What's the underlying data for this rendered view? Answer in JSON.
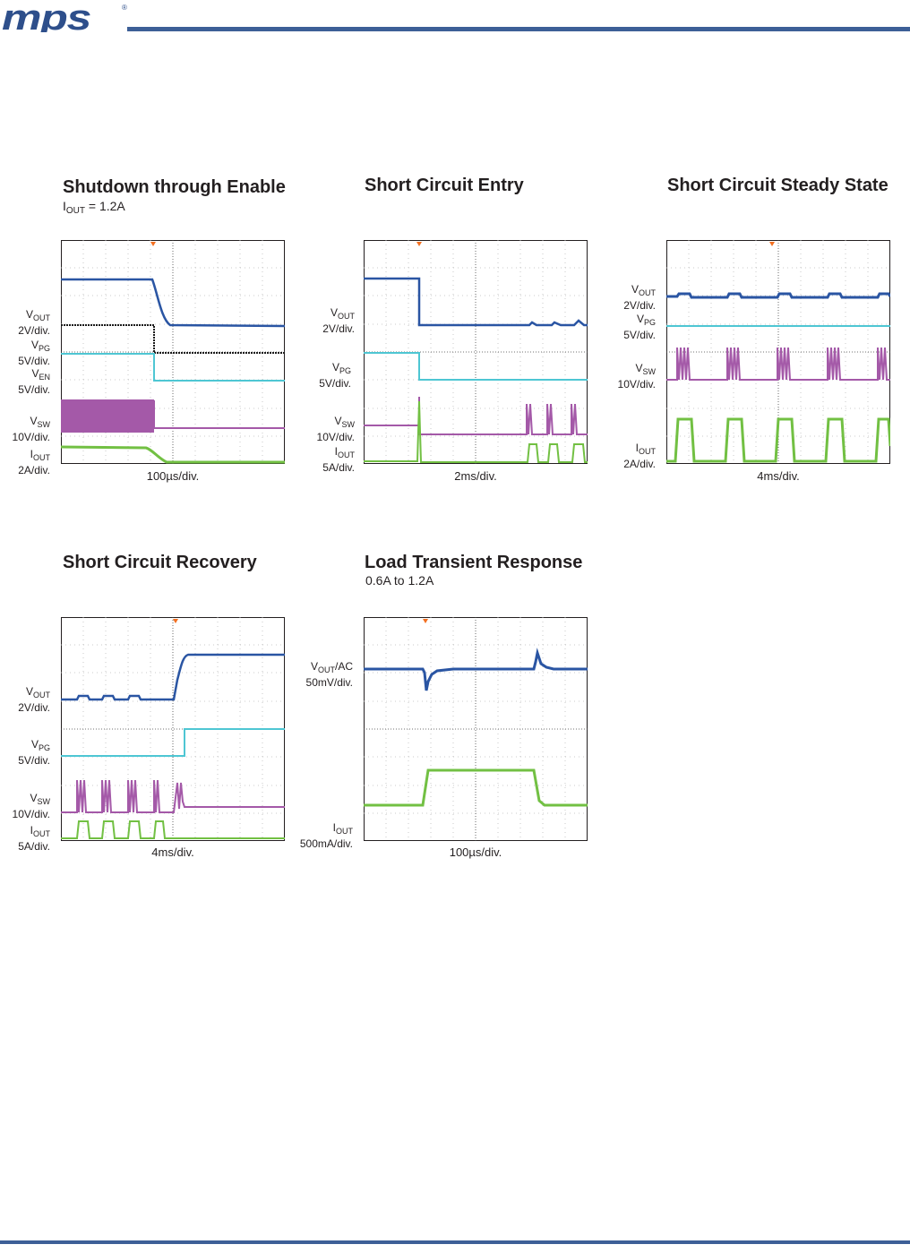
{
  "header": {
    "logo_text": "mps",
    "logo_mark": "®",
    "logo_color": "#2e4f8b"
  },
  "colors": {
    "ch1": "#2a55a3",
    "ch2": "#4ec6d3",
    "ch3": "#a459a8",
    "ch4": "#72c043",
    "trigger": "#f37021",
    "enable": "#1a1a1a"
  },
  "plots": [
    {
      "title": "Shutdown through Enable",
      "subtitle": {
        "main": "I",
        "sub": "OUT",
        "rest": " = 1.2A"
      },
      "time_div": "100µs/div.",
      "labels": [
        {
          "main": "V",
          "sub": "OUT",
          "unit": "2V/div."
        },
        {
          "main": "V",
          "sub": "PG",
          "unit": "5V/div."
        },
        {
          "main": "V",
          "sub": "EN",
          "unit": "5V/div."
        },
        {
          "main": "V",
          "sub": "SW",
          "unit": "10V/div."
        },
        {
          "main": "I",
          "sub": "OUT",
          "unit": "2A/div."
        }
      ]
    },
    {
      "title": "Short Circuit Entry",
      "time_div": "2ms/div.",
      "labels": [
        {
          "main": "V",
          "sub": "OUT",
          "unit": "2V/div."
        },
        {
          "main": "V",
          "sub": "PG",
          "unit": "5V/div."
        },
        {
          "main": "V",
          "sub": "SW",
          "unit": "10V/div."
        },
        {
          "main": "I",
          "sub": "OUT",
          "unit": "5A/div."
        }
      ]
    },
    {
      "title": "Short Circuit Steady State",
      "time_div": "4ms/div.",
      "labels": [
        {
          "main": "V",
          "sub": "OUT",
          "unit": "2V/div."
        },
        {
          "main": "V",
          "sub": "PG",
          "unit": "5V/div."
        },
        {
          "main": "V",
          "sub": "SW",
          "unit": "10V/div."
        },
        {
          "main": "I",
          "sub": "OUT",
          "unit": "2A/div."
        }
      ]
    },
    {
      "title": "Short Circuit Recovery",
      "time_div": "4ms/div.",
      "labels": [
        {
          "main": "V",
          "sub": "OUT",
          "unit": "2V/div."
        },
        {
          "main": "V",
          "sub": "PG",
          "unit": "5V/div."
        },
        {
          "main": "V",
          "sub": "SW",
          "unit": "10V/div."
        },
        {
          "main": "I",
          "sub": "OUT",
          "unit": "5A/div."
        }
      ]
    },
    {
      "title": "Load Transient Response",
      "subtitle": {
        "main": "0.6A to 1.2A",
        "sub": "",
        "rest": ""
      },
      "time_div": "100µs/div.",
      "labels": [
        {
          "main": "V",
          "sub": "OUT",
          "rest": "/AC",
          "unit": "50mV/div."
        },
        {
          "main": "I",
          "sub": "OUT",
          "unit": "500mA/div."
        }
      ]
    }
  ]
}
